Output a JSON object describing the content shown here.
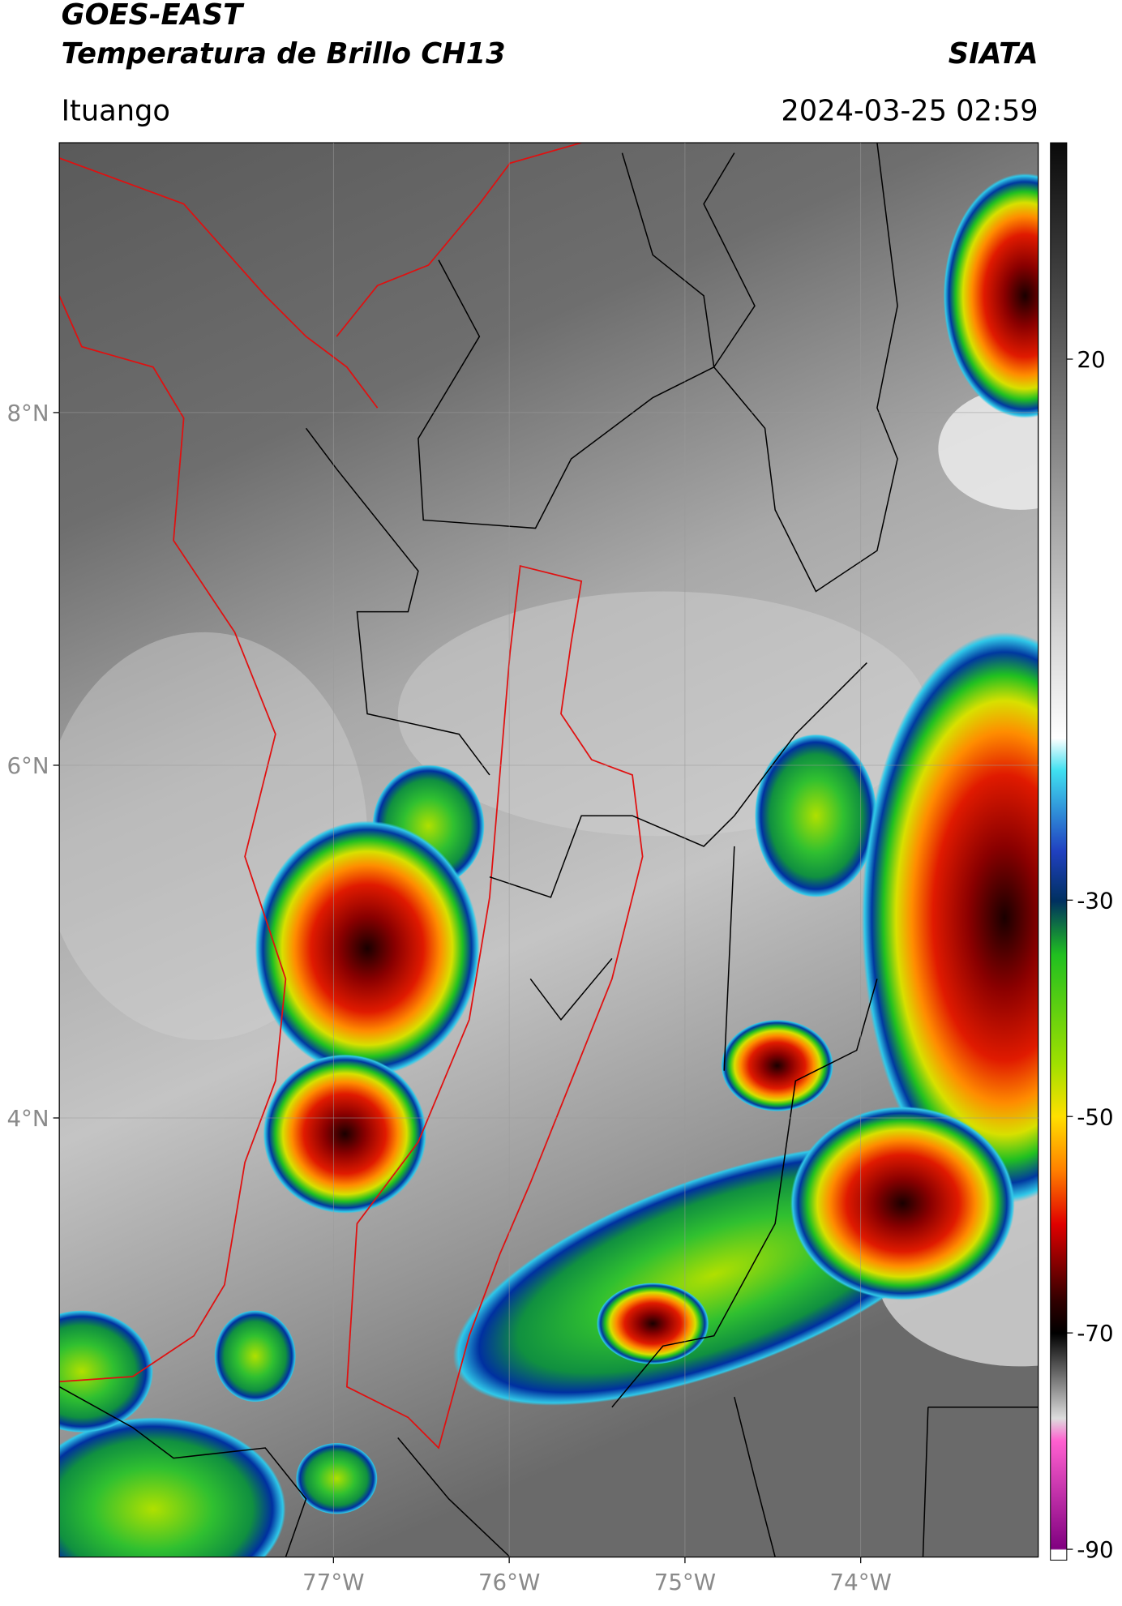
{
  "header": {
    "title": "GOES-EAST",
    "subtitle": "Temperatura de Brillo CH13",
    "source": "SIATA",
    "location": "Ituango",
    "datetime": "2024-03-25 02:59"
  },
  "map": {
    "xlim": [
      -78.56,
      -72.99
    ],
    "ylim": [
      1.51,
      9.53
    ],
    "xticks": [
      {
        "value": -77,
        "label": "77°W"
      },
      {
        "value": -76,
        "label": "76°W"
      },
      {
        "value": -75,
        "label": "75°W"
      },
      {
        "value": -74,
        "label": "74°W"
      }
    ],
    "yticks": [
      {
        "value": 8,
        "label": "8°N"
      },
      {
        "value": 6,
        "label": "6°N"
      },
      {
        "value": 4,
        "label": "4°N"
      }
    ],
    "grid": true
  },
  "colorbar": {
    "ylim": [
      -91,
      40
    ],
    "yticks": [
      20,
      -30,
      -50,
      -70,
      -90
    ]
  }
}
